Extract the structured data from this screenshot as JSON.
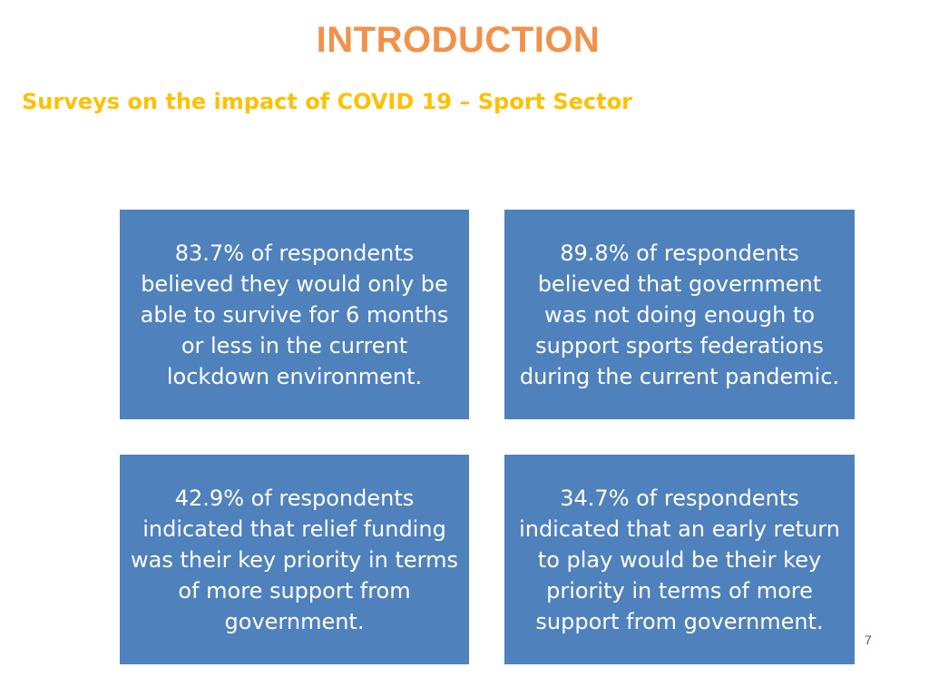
{
  "slide": {
    "title": "INTRODUCTION",
    "subtitle": "Surveys on the impact of COVID 19 – Sport Sector",
    "page_number": "7",
    "colors": {
      "title": "#F0924A",
      "subtitle": "#FFC000",
      "box_fill": "#4F81BD",
      "box_text": "#FFFFFF",
      "page_number": "#7030A0"
    },
    "stats": [
      {
        "text": "83.7% of respondents believed they would only be able to survive for 6 months or less in the current lockdown environment."
      },
      {
        "text": "89.8% of respondents believed that government was not doing enough to support sports federations during the current pandemic."
      },
      {
        "text": "42.9% of respondents indicated that relief funding was their key priority in terms of more support from government."
      },
      {
        "text": "34.7% of respondents indicated that an early return to play would be their key priority in terms of more support from government."
      }
    ]
  }
}
